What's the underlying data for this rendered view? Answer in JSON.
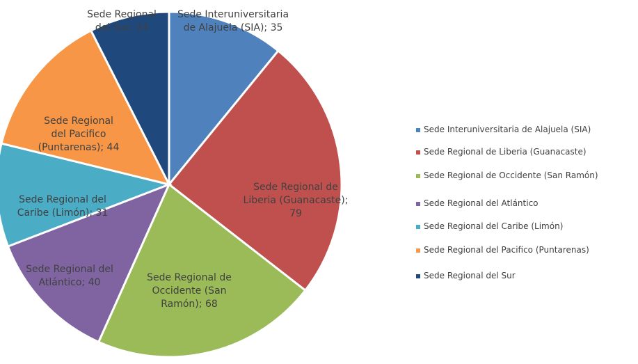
{
  "chart_data": {
    "type": "pie",
    "categories": [
      "Sede Interuniversitaria de Alajuela (SIA)",
      "Sede Regional de Liberia (Guanacaste)",
      "Sede Regional de Occidente (San Ramón)",
      "Sede Regional del Atlántico",
      "Sede Regional del Caribe (Limón)",
      "Sede Regional del Pacifico (Puntarenas)",
      "Sede Regional del Sur"
    ],
    "values": [
      35,
      79,
      68,
      40,
      31,
      44,
      24
    ],
    "value_labels": [
      "Sede Interuniversitaria de Alajuela (SIA); 35",
      "Sede Regional de Liberia (Guanacaste); 79",
      "Sede Regional de Occidente (San Ramón); 68",
      "Sede Regional del Atlántico; 40",
      "Sede Regional del Caribe (Limón); 31",
      "Sede Regional del Pacifico (Puntarenas); 44",
      "Sede Regional del Sur; 24"
    ],
    "colors": [
      "#4f81bd",
      "#c0504d",
      "#9bbb59",
      "#8064a2",
      "#4bacc6",
      "#f79646",
      "#1f497d"
    ],
    "legend": "right"
  }
}
